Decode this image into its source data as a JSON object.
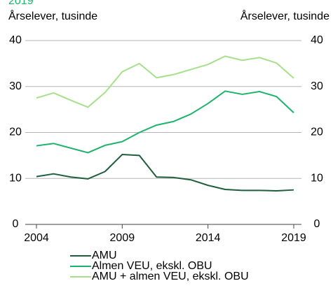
{
  "chart_data": {
    "type": "line",
    "title": "2019",
    "y_label": "Årselever, tusinde",
    "y2_label": "Årselever, tusinde",
    "x": [
      2004,
      2005,
      2006,
      2007,
      2008,
      2009,
      2010,
      2011,
      2012,
      2013,
      2014,
      2015,
      2016,
      2017,
      2018,
      2019
    ],
    "xlim": [
      2004,
      2019
    ],
    "xticks": [
      2004,
      2009,
      2014,
      2019
    ],
    "ylim": [
      0,
      40
    ],
    "yticks": [
      0,
      10,
      20,
      30,
      40
    ],
    "y2lim": [
      0,
      40
    ],
    "y2ticks": [
      0,
      10,
      20,
      30,
      40
    ],
    "grid": true,
    "series": [
      {
        "name": "AMU",
        "color": "#1e5e3c",
        "values": [
          10.4,
          11.0,
          10.3,
          9.9,
          11.5,
          15.2,
          15.0,
          10.3,
          10.2,
          9.7,
          8.5,
          7.6,
          7.4,
          7.4,
          7.3,
          7.5
        ]
      },
      {
        "name": "Almen VEU, ekskl. OBU",
        "color": "#1db36b",
        "values": [
          17.1,
          17.6,
          16.6,
          15.6,
          17.2,
          18.0,
          20.0,
          21.6,
          22.4,
          24.0,
          26.3,
          29.0,
          28.3,
          28.9,
          27.8,
          24.3
        ]
      },
      {
        "name": "AMU + almen VEU, ekskl. OBU",
        "color": "#a6e08a",
        "values": [
          27.5,
          28.6,
          27.0,
          25.5,
          28.7,
          33.2,
          35.0,
          31.9,
          32.6,
          33.7,
          34.8,
          36.6,
          35.7,
          36.3,
          35.1,
          31.8
        ]
      }
    ]
  }
}
